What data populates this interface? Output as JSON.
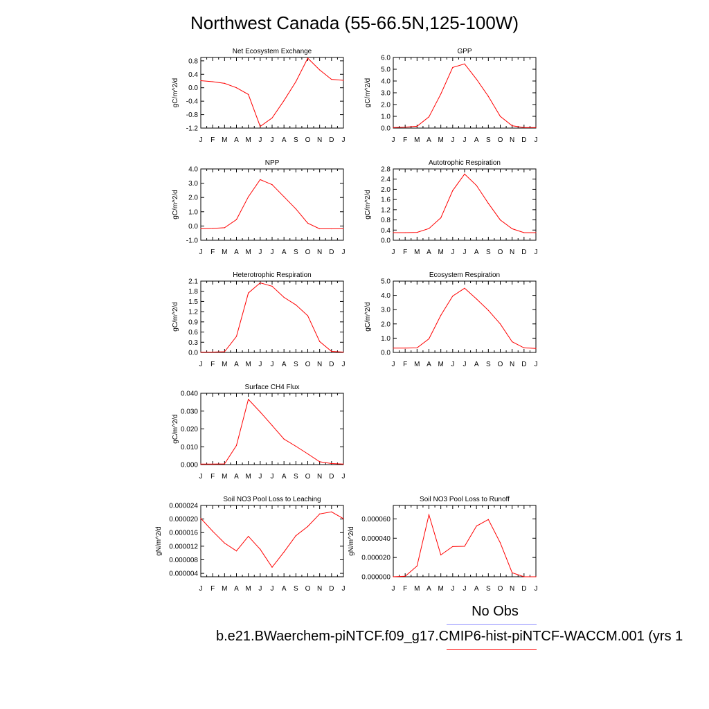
{
  "title": "Northwest Canada (55-66.5N,125-100W)",
  "colors": {
    "model_line": "#ff0000",
    "obs_line": "#8c8cff",
    "axis": "#000000"
  },
  "legend": {
    "obs_label": "No Obs",
    "case_label": "b.e21.BWaerchem-piNTCF.f09_g17.CMIP6-hist-piNTCF-WACCM.001 (yrs 1"
  },
  "chart_data": [
    {
      "type": "line",
      "title": "Net Ecosystem Exchange",
      "ylabel": "gC/m^2/d",
      "categories": [
        "J",
        "F",
        "M",
        "A",
        "M",
        "J",
        "J",
        "A",
        "S",
        "O",
        "N",
        "D",
        "J"
      ],
      "ylim": [
        -1.2,
        0.9
      ],
      "yticks": [
        "-1.2",
        "-0.8",
        "-0.4",
        "0.0",
        "0.4",
        "0.8"
      ],
      "ytick_values": [
        -1.2,
        -0.8,
        -0.4,
        0.0,
        0.4,
        0.8
      ],
      "values": [
        0.21,
        0.18,
        0.13,
        0.0,
        -0.2,
        -1.15,
        -0.9,
        -0.38,
        0.18,
        0.88,
        0.53,
        0.25,
        0.22
      ]
    },
    {
      "type": "line",
      "title": "GPP",
      "ylabel": "gC/m^2/d",
      "categories": [
        "J",
        "F",
        "M",
        "A",
        "M",
        "J",
        "J",
        "A",
        "S",
        "O",
        "N",
        "D",
        "J"
      ],
      "ylim": [
        0.0,
        6.0
      ],
      "yticks": [
        "0.0",
        "1.0",
        "2.0",
        "3.0",
        "4.0",
        "5.0",
        "6.0"
      ],
      "ytick_values": [
        0,
        1,
        2,
        3,
        4,
        5,
        6
      ],
      "values": [
        0.05,
        0.08,
        0.15,
        0.95,
        2.9,
        5.15,
        5.45,
        4.15,
        2.7,
        1.0,
        0.2,
        0.05,
        0.05
      ]
    },
    {
      "type": "line",
      "title": "NPP",
      "ylabel": "gC/m^2/d",
      "categories": [
        "J",
        "F",
        "M",
        "A",
        "M",
        "J",
        "J",
        "A",
        "S",
        "O",
        "N",
        "D",
        "J"
      ],
      "ylim": [
        -1.0,
        4.0
      ],
      "yticks": [
        "-1.0",
        "0.0",
        "1.0",
        "2.0",
        "3.0",
        "4.0"
      ],
      "ytick_values": [
        -1,
        0,
        1,
        2,
        3,
        4
      ],
      "values": [
        -0.2,
        -0.17,
        -0.12,
        0.45,
        2.05,
        3.25,
        2.9,
        2.05,
        1.2,
        0.2,
        -0.2,
        -0.2,
        -0.2
      ]
    },
    {
      "type": "line",
      "title": "Autotrophic Respiration",
      "ylabel": "gC/m^2/d",
      "categories": [
        "J",
        "F",
        "M",
        "A",
        "M",
        "J",
        "J",
        "A",
        "S",
        "O",
        "N",
        "D",
        "J"
      ],
      "ylim": [
        0.0,
        2.8
      ],
      "yticks": [
        "0.0",
        "0.4",
        "0.8",
        "1.2",
        "1.6",
        "2.0",
        "2.4",
        "2.8"
      ],
      "ytick_values": [
        0,
        0.4,
        0.8,
        1.2,
        1.6,
        2.0,
        2.4,
        2.8
      ],
      "values": [
        0.3,
        0.3,
        0.31,
        0.46,
        0.88,
        1.95,
        2.6,
        2.15,
        1.45,
        0.8,
        0.45,
        0.3,
        0.3
      ]
    },
    {
      "type": "line",
      "title": "Heterotrophic Respiration",
      "ylabel": "gC/m^2/d",
      "categories": [
        "J",
        "F",
        "M",
        "A",
        "M",
        "J",
        "J",
        "A",
        "S",
        "O",
        "N",
        "D",
        "J"
      ],
      "ylim": [
        0.0,
        2.1
      ],
      "yticks": [
        "0.0",
        "0.3",
        "0.6",
        "0.9",
        "1.2",
        "1.5",
        "1.8",
        "2.1"
      ],
      "ytick_values": [
        0,
        0.3,
        0.6,
        0.9,
        1.2,
        1.5,
        1.8,
        2.1
      ],
      "values": [
        0.01,
        0.01,
        0.02,
        0.47,
        1.75,
        2.05,
        1.95,
        1.62,
        1.4,
        1.08,
        0.32,
        0.03,
        0.01
      ]
    },
    {
      "type": "line",
      "title": "Ecosystem Respiration",
      "ylabel": "gC/m^2/d",
      "categories": [
        "J",
        "F",
        "M",
        "A",
        "M",
        "J",
        "J",
        "A",
        "S",
        "O",
        "N",
        "D",
        "J"
      ],
      "ylim": [
        0.0,
        5.0
      ],
      "yticks": [
        "0.0",
        "1.0",
        "2.0",
        "3.0",
        "4.0",
        "5.0"
      ],
      "ytick_values": [
        0,
        1,
        2,
        3,
        4,
        5
      ],
      "values": [
        0.3,
        0.3,
        0.32,
        0.95,
        2.6,
        3.95,
        4.5,
        3.75,
        2.95,
        2.0,
        0.75,
        0.32,
        0.28
      ]
    },
    {
      "type": "line",
      "title": "Surface CH4 Flux",
      "ylabel": "gC/m^2/d",
      "categories": [
        "J",
        "F",
        "M",
        "A",
        "M",
        "J",
        "J",
        "A",
        "S",
        "O",
        "N",
        "D",
        "J"
      ],
      "ylim": [
        0.0,
        0.04
      ],
      "yticks": [
        "0.000",
        "0.010",
        "0.020",
        "0.030",
        "0.040"
      ],
      "ytick_values": [
        0,
        0.01,
        0.02,
        0.03,
        0.04
      ],
      "values": [
        0.0003,
        0.0003,
        0.0004,
        0.0107,
        0.0366,
        0.0295,
        0.022,
        0.0143,
        0.0103,
        0.006,
        0.0016,
        0.0006,
        0.0003
      ]
    },
    {
      "type": "line",
      "title": "Soil NO3 Pool Loss to Leaching",
      "ylabel": "gN/m^2/d",
      "categories": [
        "J",
        "F",
        "M",
        "A",
        "M",
        "J",
        "J",
        "A",
        "S",
        "O",
        "N",
        "D",
        "J"
      ],
      "ylim": [
        3e-06,
        2.4e-05
      ],
      "yticks": [
        "0.000004",
        "0.000008",
        "0.000012",
        "0.000016",
        "0.000020",
        "0.000024"
      ],
      "ytick_values": [
        4e-06,
        8e-06,
        1.2e-05,
        1.6e-05,
        2e-05,
        2.4e-05
      ],
      "values": [
        2.02e-05,
        1.64e-05,
        1.29e-05,
        1.06e-05,
        1.49e-05,
        1.11e-05,
        5.8e-06,
        1.03e-05,
        1.51e-05,
        1.78e-05,
        2.15e-05,
        2.21e-05,
        2.01e-05
      ]
    },
    {
      "type": "line",
      "title": "Soil NO3 Pool Loss to Runoff",
      "ylabel": "gN/m^2/d",
      "categories": [
        "J",
        "F",
        "M",
        "A",
        "M",
        "J",
        "J",
        "A",
        "S",
        "O",
        "N",
        "D",
        "J"
      ],
      "ylim": [
        0.0,
        7.4e-05
      ],
      "yticks": [
        "0.000000",
        "0.000020",
        "0.000040",
        "0.000060"
      ],
      "ytick_values": [
        0,
        2e-05,
        4e-05,
        6e-05
      ],
      "values": [
        0.0,
        5e-07,
        1.11e-05,
        6.44e-05,
        2.26e-05,
        3.13e-05,
        3.16e-05,
        5.26e-05,
        5.94e-05,
        3.53e-05,
        4.2e-06,
        0.0,
        0.0
      ]
    }
  ]
}
